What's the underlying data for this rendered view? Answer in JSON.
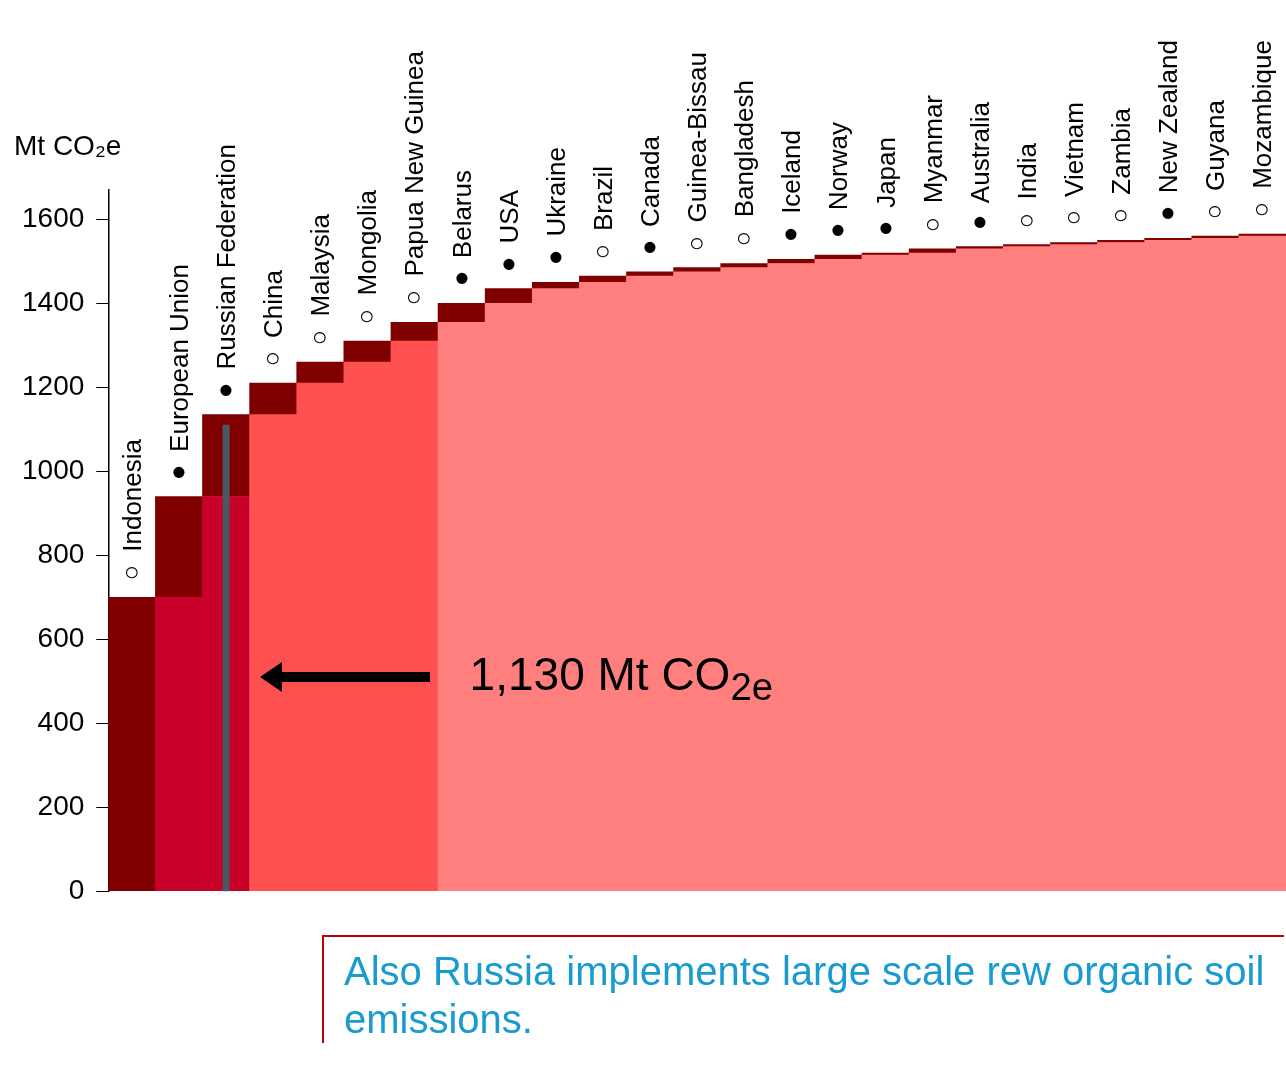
{
  "chart_data": {
    "type": "bar",
    "stacked": true,
    "ylabel": "Mt CO₂e",
    "categories": [
      "○ Indonesia",
      "● European Union",
      "● Russian Federation",
      "○ China",
      "○ Malaysia",
      "○ Mongolia",
      "○ Papua New Guinea",
      "● Belarus",
      "● USA",
      "● Ukraine",
      "○ Brazil",
      "● Canada",
      "○ Guinea-Bissau",
      "○ Bangladesh",
      "● Iceland",
      "● Norway",
      "● Japan",
      "○ Myanmar",
      "● Australia",
      "○ India",
      "○ Vietnam",
      "○ Zambia",
      "● New Zealand",
      "○ Guyana",
      "○ Mozambique"
    ],
    "series": [
      {
        "colors": [
          "#ff7f7f",
          "#c8002a",
          "#c8002a",
          "#ff5050",
          "#ff5050",
          "#ff5050",
          "#ff5050",
          "#ff7f7f",
          "#ff7f7f",
          "#ff7f7f",
          "#ff7f7f",
          "#ff7f7f",
          "#ff7f7f",
          "#ff7f7f",
          "#ff7f7f",
          "#ff7f7f",
          "#ff7f7f",
          "#ff7f7f",
          "#ff7f7f",
          "#ff7f7f",
          "#ff7f7f",
          "#ff7f7f",
          "#ff7f7f",
          "#ff7f7f",
          "#ff7f7f"
        ],
        "values": [
          null,
          700,
          940,
          1135,
          1210,
          1260,
          1310,
          1355,
          1400,
          1435,
          1450,
          1465,
          1475,
          1485,
          1495,
          1505,
          1515,
          1520,
          1530,
          1535,
          1540,
          1545,
          1550,
          1555,
          1560
        ]
      },
      {
        "color": "#800000",
        "values": [
          700,
          240,
          195,
          75,
          50,
          50,
          45,
          45,
          35,
          15,
          15,
          10,
          10,
          10,
          10,
          10,
          5,
          10,
          5,
          5,
          5,
          5,
          5,
          5,
          5
        ]
      }
    ],
    "ref_lines": [
      {
        "axis": "x",
        "value": "● Russian Federation",
        "color": "#4a5866"
      }
    ],
    "ylim": [
      0,
      1670
    ],
    "yticks": [
      0,
      200,
      400,
      600,
      800,
      1000,
      1200,
      1400,
      1600
    ],
    "tick_labels": "y",
    "annotations": [
      "1,130 Mt CO$_{2e}$",
      "Also Russia implements large scale rew organic soil emissions."
    ]
  }
}
